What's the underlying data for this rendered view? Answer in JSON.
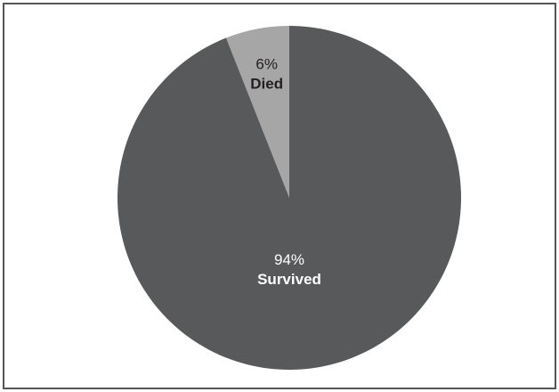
{
  "chart_data": {
    "type": "pie",
    "title": "",
    "slices": [
      {
        "label": "Died",
        "value": 6,
        "pct_text": "6%",
        "color": "#a6a6a7",
        "text_color": "#231f20"
      },
      {
        "label": "Survived",
        "value": 94,
        "pct_text": "94%",
        "color": "#58595b",
        "text_color": "#ffffff"
      }
    ],
    "start_angle_deg": 0,
    "direction": "counterclockwise",
    "legend": "none",
    "labels_inside_slices": true
  }
}
